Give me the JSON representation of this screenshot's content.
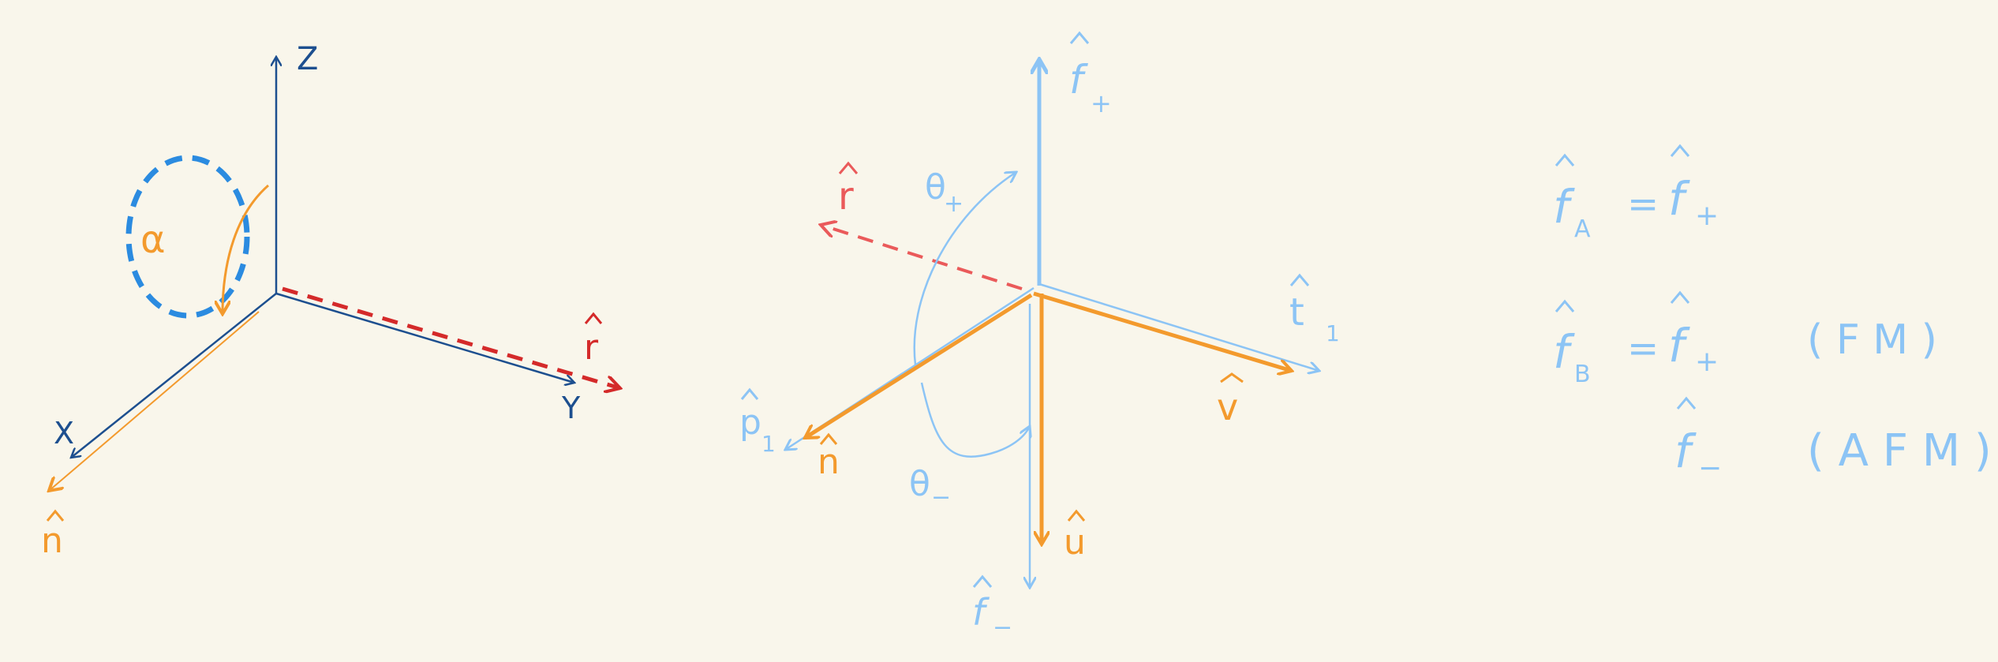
{
  "colors": {
    "background": "#f9f6eb",
    "dark_blue": "#1d4f8f",
    "light_blue": "#8cc4f5",
    "bright_blue": "#2b8be0",
    "orange": "#f39a2d",
    "red": "#d42a2a",
    "salmon": "#ea5a5a"
  },
  "left_diagram": {
    "z_label": "Z",
    "x_label": "X",
    "y_label": "Y",
    "r_label": "r",
    "n_label": "n",
    "alpha_label": "α"
  },
  "middle_diagram": {
    "f_plus": "f",
    "f_plus_sub": "+",
    "f_minus": "f",
    "f_minus_sub": "−",
    "theta_plus": "θ",
    "theta_plus_sub": "+",
    "theta_minus": "θ",
    "theta_minus_sub": "−",
    "r_label": "r",
    "t_label": "t",
    "t_sub": "1",
    "p_label": "p",
    "p_sub": "1",
    "n_label": "n",
    "v_label": "v",
    "u_label": "u"
  },
  "equations": {
    "line1_lhs": "f",
    "line1_lhs_sub": "A",
    "line1_eq": "=",
    "line1_rhs": "f",
    "line1_rhs_sub": "+",
    "line2_lhs": "f",
    "line2_lhs_sub": "B",
    "line2_eq": "=",
    "line2_rhs": "f",
    "line2_rhs_sub": "+",
    "line2_tag": "( F M )",
    "line3_rhs": "f",
    "line3_rhs_sub": "−",
    "line3_tag": "( A F M )"
  }
}
